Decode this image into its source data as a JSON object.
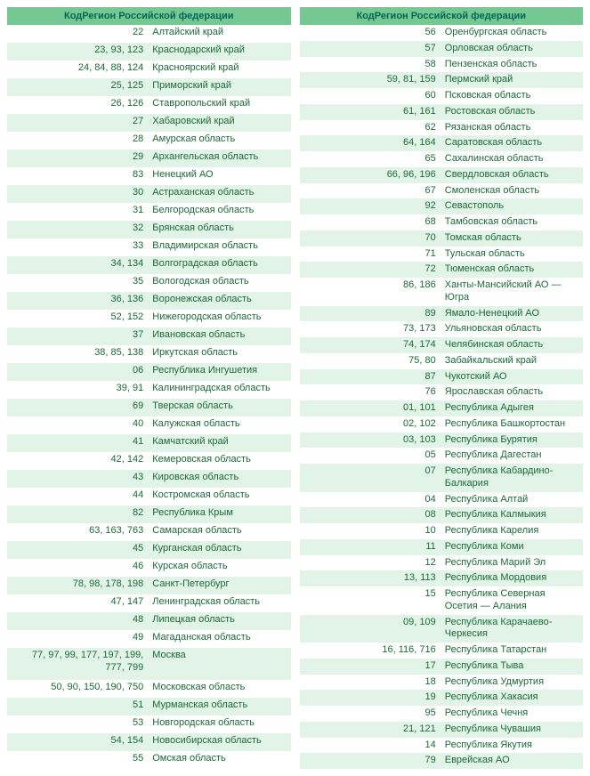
{
  "header_code": "Код",
  "header_region": "Регион Российской федерации",
  "left": [
    {
      "code": "22",
      "region": "Алтайский край"
    },
    {
      "code": "23, 93, 123",
      "region": "Краснодарский край"
    },
    {
      "code": "24, 84, 88, 124",
      "region": "Красноярский край"
    },
    {
      "code": "25, 125",
      "region": "Приморский край"
    },
    {
      "code": "26, 126",
      "region": "Ставропольский край"
    },
    {
      "code": "27",
      "region": "Хабаровский край"
    },
    {
      "code": "28",
      "region": "Амурская область"
    },
    {
      "code": "29",
      "region": "Архангельская область"
    },
    {
      "code": "83",
      "region": "Ненецкий АО"
    },
    {
      "code": "30",
      "region": "Астраханская область"
    },
    {
      "code": "31",
      "region": "Белгородская область"
    },
    {
      "code": "32",
      "region": "Брянская область"
    },
    {
      "code": "33",
      "region": "Владимирская область"
    },
    {
      "code": "34, 134",
      "region": "Волгоградская область"
    },
    {
      "code": "35",
      "region": "Вологодская область"
    },
    {
      "code": "36, 136",
      "region": "Воронежская область"
    },
    {
      "code": "52, 152",
      "region": "Нижегородская область"
    },
    {
      "code": "37",
      "region": "Ивановская область"
    },
    {
      "code": "38, 85, 138",
      "region": "Иркутская область"
    },
    {
      "code": "06",
      "region": "Республика Ингушетия"
    },
    {
      "code": "39, 91",
      "region": "Калининградская область"
    },
    {
      "code": "69",
      "region": "Тверская область"
    },
    {
      "code": "40",
      "region": "Калужская область"
    },
    {
      "code": "41",
      "region": "Камчатский край"
    },
    {
      "code": "42, 142",
      "region": "Кемеровская область"
    },
    {
      "code": "43",
      "region": "Кировская область"
    },
    {
      "code": "44",
      "region": "Костромская область"
    },
    {
      "code": "82",
      "region": "Республика Крым"
    },
    {
      "code": "63, 163, 763",
      "region": "Самарская область"
    },
    {
      "code": "45",
      "region": "Курганская область"
    },
    {
      "code": "46",
      "region": "Курская область"
    },
    {
      "code": "78, 98, 178, 198",
      "region": "Санкт-Петербург"
    },
    {
      "code": "47, 147",
      "region": "Ленинградская область"
    },
    {
      "code": "48",
      "region": "Липецкая область"
    },
    {
      "code": "49",
      "region": "Магаданская область"
    },
    {
      "code": "77, 97, 99, 177, 197, 199, 777, 799",
      "region": "Москва"
    },
    {
      "code": "50, 90, 150, 190, 750",
      "region": "Московская область"
    },
    {
      "code": "51",
      "region": "Мурманская область"
    },
    {
      "code": "53",
      "region": "Новгородская область"
    },
    {
      "code": "54, 154",
      "region": "Новосибирская область"
    },
    {
      "code": "55",
      "region": "Омская область"
    }
  ],
  "right": [
    {
      "code": "56",
      "region": "Оренбургская область"
    },
    {
      "code": "57",
      "region": "Орловская область"
    },
    {
      "code": "58",
      "region": "Пензенская область"
    },
    {
      "code": "59, 81, 159",
      "region": "Пермский край"
    },
    {
      "code": "60",
      "region": "Псковская область"
    },
    {
      "code": "61, 161",
      "region": "Ростовская область"
    },
    {
      "code": "62",
      "region": "Рязанская область"
    },
    {
      "code": "64, 164",
      "region": "Саратовская область"
    },
    {
      "code": "65",
      "region": "Сахалинская область"
    },
    {
      "code": "66, 96, 196",
      "region": "Свердловская область"
    },
    {
      "code": "67",
      "region": "Смоленская область"
    },
    {
      "code": "92",
      "region": "Севастополь"
    },
    {
      "code": "68",
      "region": "Тамбовская область"
    },
    {
      "code": "70",
      "region": "Томская область"
    },
    {
      "code": "71",
      "region": "Тульская область"
    },
    {
      "code": "72",
      "region": "Тюменская область"
    },
    {
      "code": "86, 186",
      "region": "Ханты-Мансийский АО — Югра"
    },
    {
      "code": "89",
      "region": "Ямало-Ненецкий АО"
    },
    {
      "code": "73, 173",
      "region": "Ульяновская область"
    },
    {
      "code": "74, 174",
      "region": "Челябинская область"
    },
    {
      "code": "75, 80",
      "region": "Забайкальский край"
    },
    {
      "code": "87",
      "region": "Чукотский АО"
    },
    {
      "code": "76",
      "region": "Ярославская область"
    },
    {
      "code": "01, 101",
      "region": "Республика Адыгея"
    },
    {
      "code": "02, 102",
      "region": "Республика Башкортостан"
    },
    {
      "code": "03, 103",
      "region": "Республика Бурятия"
    },
    {
      "code": "05",
      "region": "Республика Дагестан"
    },
    {
      "code": "07",
      "region": "Республика Кабардино-Балкария"
    },
    {
      "code": "04",
      "region": "Республика Алтай"
    },
    {
      "code": "08",
      "region": "Республика Калмыкия"
    },
    {
      "code": "10",
      "region": "Республика Карелия"
    },
    {
      "code": "11",
      "region": "Республика Коми"
    },
    {
      "code": "12",
      "region": "Республика Марий Эл"
    },
    {
      "code": "13, 113",
      "region": "Республика Мордовия"
    },
    {
      "code": "15",
      "region": "Республика Северная Осетия — Алания"
    },
    {
      "code": "09, 109",
      "region": "Республика Карачаево-Черкесия"
    },
    {
      "code": "16, 116, 716",
      "region": "Республика Татарстан"
    },
    {
      "code": "17",
      "region": "Республика Тыва"
    },
    {
      "code": "18",
      "region": "Республика Удмуртия"
    },
    {
      "code": "19",
      "region": "Республика Хакасия"
    },
    {
      "code": "95",
      "region": "Республика Чечня"
    },
    {
      "code": "21, 121",
      "region": "Республика Чувашия"
    },
    {
      "code": "14",
      "region": "Республика Якутия"
    },
    {
      "code": "79",
      "region": "Еврейская АО"
    }
  ]
}
